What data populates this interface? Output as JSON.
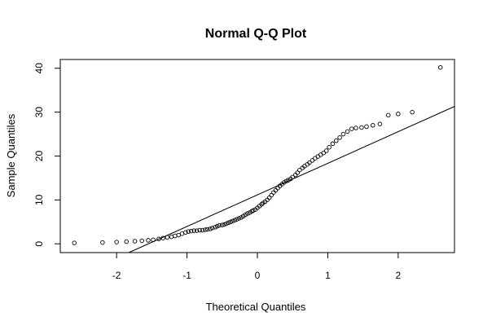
{
  "chart_data": {
    "type": "scatter",
    "title": "Normal Q-Q Plot",
    "xlabel": "Theoretical Quantiles",
    "ylabel": "Sample Quantiles",
    "xlim": [
      -2.8,
      2.8
    ],
    "ylim": [
      -2,
      42
    ],
    "x_ticks": [
      -2,
      -1,
      0,
      1,
      2
    ],
    "x_tick_labels": [
      "-2",
      "-1",
      "0",
      "1",
      "2"
    ],
    "y_ticks": [
      0,
      10,
      20,
      30,
      40
    ],
    "y_tick_labels": [
      "0",
      "10",
      "20",
      "30",
      "40"
    ],
    "grid": false,
    "legend": "none",
    "point_style": "open-circle",
    "point_color": "#000000",
    "qq_line": {
      "x1": -2.8,
      "y1": -9.0,
      "x2": 2.8,
      "y2": 31.3
    },
    "x": [
      -2.6,
      -2.2,
      -2.0,
      -1.86,
      -1.74,
      -1.64,
      -1.55,
      -1.48,
      -1.4,
      -1.34,
      -1.28,
      -1.22,
      -1.17,
      -1.12,
      -1.07,
      -1.02,
      -0.98,
      -0.94,
      -0.9,
      -0.86,
      -0.82,
      -0.78,
      -0.74,
      -0.71,
      -0.67,
      -0.64,
      -0.6,
      -0.57,
      -0.54,
      -0.5,
      -0.47,
      -0.44,
      -0.41,
      -0.38,
      -0.35,
      -0.32,
      -0.29,
      -0.26,
      -0.23,
      -0.2,
      -0.17,
      -0.14,
      -0.11,
      -0.08,
      -0.06,
      -0.03,
      0.0,
      0.03,
      0.06,
      0.08,
      0.11,
      0.14,
      0.17,
      0.2,
      0.23,
      0.26,
      0.29,
      0.32,
      0.35,
      0.38,
      0.41,
      0.44,
      0.47,
      0.5,
      0.54,
      0.57,
      0.6,
      0.64,
      0.67,
      0.71,
      0.74,
      0.78,
      0.82,
      0.86,
      0.9,
      0.94,
      0.98,
      1.02,
      1.07,
      1.12,
      1.17,
      1.22,
      1.28,
      1.34,
      1.4,
      1.48,
      1.55,
      1.64,
      1.74,
      1.86,
      2.0,
      2.2,
      2.6
    ],
    "y": [
      0.2,
      0.3,
      0.4,
      0.5,
      0.6,
      0.7,
      0.8,
      0.9,
      1.1,
      1.3,
      1.5,
      1.6,
      1.8,
      2.0,
      2.3,
      2.6,
      2.8,
      2.9,
      3.0,
      3.0,
      3.1,
      3.1,
      3.2,
      3.3,
      3.4,
      3.6,
      3.8,
      4.0,
      4.2,
      4.3,
      4.4,
      4.6,
      4.8,
      5.0,
      5.2,
      5.4,
      5.6,
      5.8,
      6.0,
      6.3,
      6.6,
      6.9,
      7.1,
      7.4,
      7.6,
      7.8,
      8.2,
      8.6,
      9.0,
      9.3,
      9.6,
      10.0,
      10.5,
      11.1,
      11.7,
      12.2,
      12.7,
      13.2,
      13.6,
      14.0,
      14.3,
      14.5,
      14.8,
      15.2,
      15.7,
      16.2,
      16.8,
      17.3,
      17.7,
      18.1,
      18.5,
      19.0,
      19.5,
      19.9,
      20.3,
      20.7,
      21.2,
      22.0,
      22.8,
      23.5,
      24.2,
      25.0,
      25.6,
      26.2,
      26.4,
      26.5,
      26.7,
      27.0,
      27.3,
      29.3,
      29.6,
      30.0,
      40.2
    ]
  }
}
